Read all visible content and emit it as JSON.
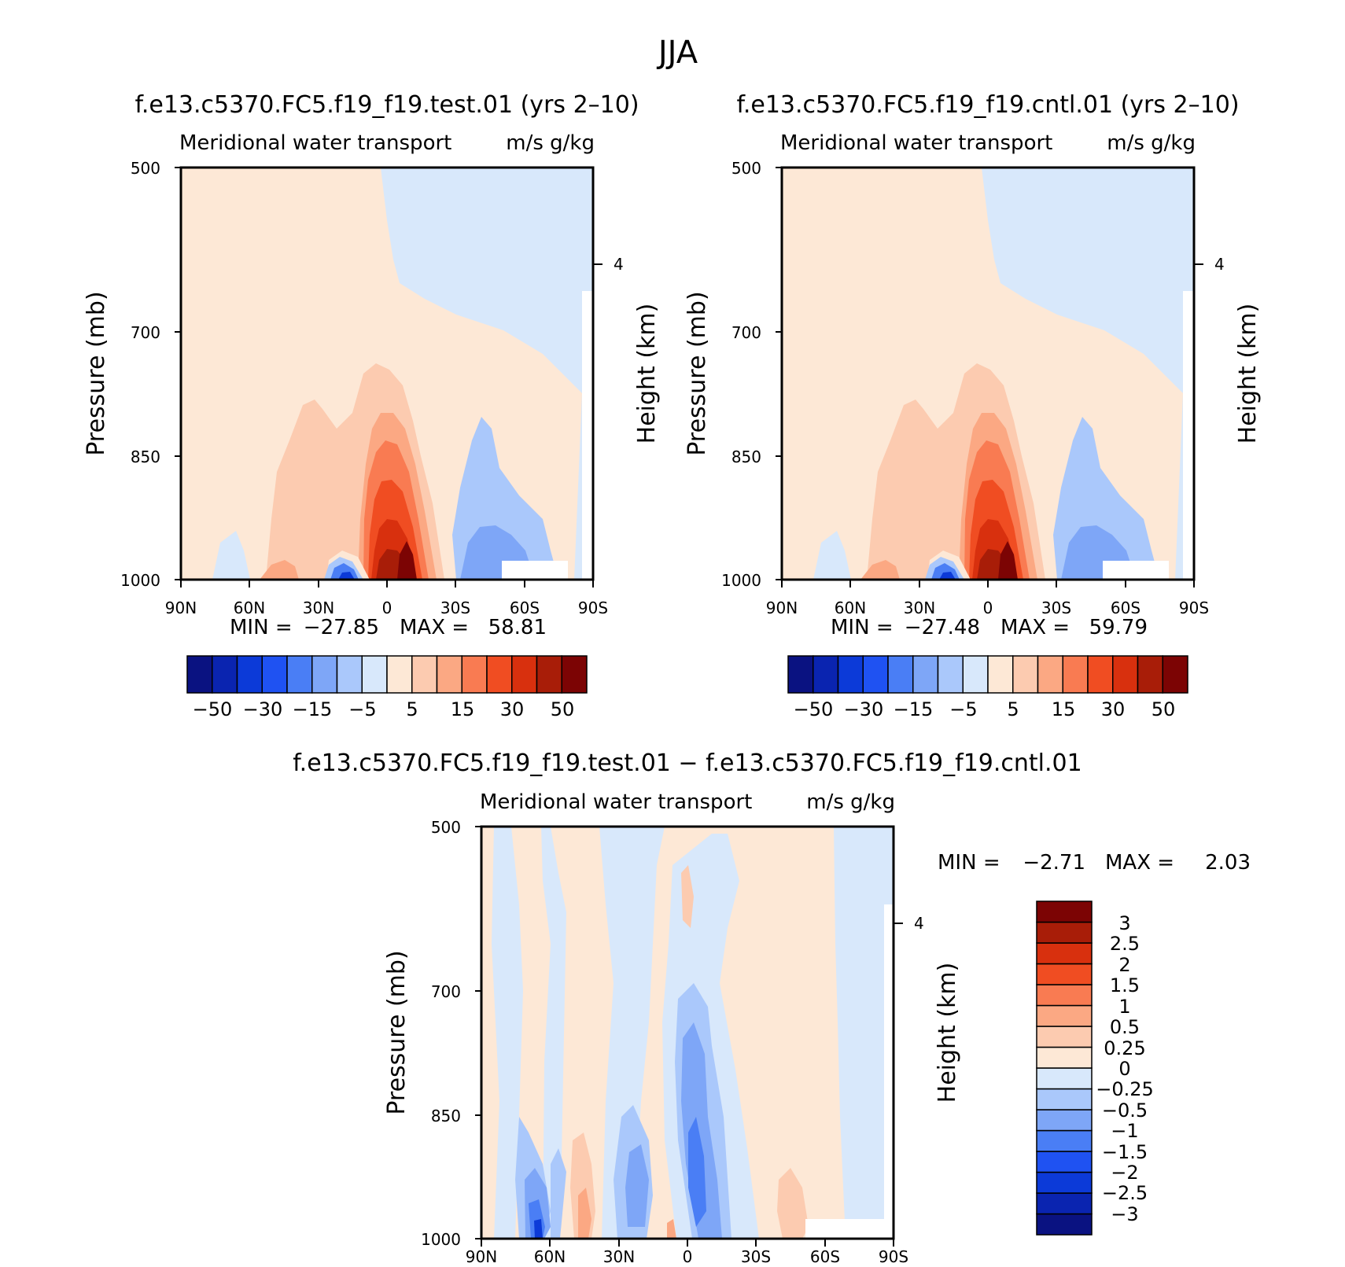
{
  "figure": {
    "title": "JJA"
  },
  "chart_data": [
    {
      "type": "heatmap",
      "title": "f.e13.c5370.FC5.f19_f19.test.01 (yrs 2–10)",
      "subtitle_left": "Meridional water transport",
      "subtitle_right": "m/s g/kg",
      "ylabel": "Pressure (mb)",
      "ylabel_right": "Height (km)",
      "x_ticks": [
        "90N",
        "60N",
        "30N",
        "0",
        "30S",
        "60S",
        "90S"
      ],
      "y_ticks": [
        "500",
        "700",
        "850",
        "1000"
      ],
      "y_ticks_right": [
        "4"
      ],
      "xlim": [
        90,
        -90
      ],
      "ylim": [
        1000,
        500
      ],
      "min_label": "MIN =",
      "min_value": "−27.85",
      "max_label": "MAX =",
      "max_value": "58.81",
      "colorbar": {
        "orientation": "horizontal",
        "colors": [
          "#0a1281",
          "#0a24b0",
          "#0c3ad8",
          "#1f52f2",
          "#4a7ef5",
          "#7ea6f7",
          "#aac8fb",
          "#d8e8fb",
          "#fde8d6",
          "#fccbb0",
          "#fba883",
          "#f97b52",
          "#f04d22",
          "#d8300e",
          "#a81d08",
          "#7c0404"
        ],
        "labels": [
          "−50",
          "−30",
          "−15",
          "−5",
          "5",
          "15",
          "30",
          "50"
        ]
      }
    },
    {
      "type": "heatmap",
      "title": "f.e13.c5370.FC5.f19_f19.cntl.01 (yrs 2–10)",
      "subtitle_left": "Meridional water transport",
      "subtitle_right": "m/s g/kg",
      "ylabel": "Pressure (mb)",
      "ylabel_right": "Height (km)",
      "x_ticks": [
        "90N",
        "60N",
        "30N",
        "0",
        "30S",
        "60S",
        "90S"
      ],
      "y_ticks": [
        "500",
        "700",
        "850",
        "1000"
      ],
      "y_ticks_right": [
        "4"
      ],
      "xlim": [
        90,
        -90
      ],
      "ylim": [
        1000,
        500
      ],
      "min_label": "MIN =",
      "min_value": "−27.48",
      "max_label": "MAX =",
      "max_value": "59.79",
      "colorbar": {
        "orientation": "horizontal",
        "colors": [
          "#0a1281",
          "#0a24b0",
          "#0c3ad8",
          "#1f52f2",
          "#4a7ef5",
          "#7ea6f7",
          "#aac8fb",
          "#d8e8fb",
          "#fde8d6",
          "#fccbb0",
          "#fba883",
          "#f97b52",
          "#f04d22",
          "#d8300e",
          "#a81d08",
          "#7c0404"
        ],
        "labels": [
          "−50",
          "−30",
          "−15",
          "−5",
          "5",
          "15",
          "30",
          "50"
        ]
      }
    },
    {
      "type": "heatmap",
      "title": "f.e13.c5370.FC5.f19_f19.test.01 − f.e13.c5370.FC5.f19_f19.cntl.01",
      "subtitle_left": "Meridional water transport",
      "subtitle_right": "m/s g/kg",
      "ylabel": "Pressure (mb)",
      "ylabel_right": "Height (km)",
      "x_ticks": [
        "90N",
        "60N",
        "30N",
        "0",
        "30S",
        "60S",
        "90S"
      ],
      "y_ticks": [
        "500",
        "700",
        "850",
        "1000"
      ],
      "y_ticks_right": [
        "4"
      ],
      "xlim": [
        90,
        -90
      ],
      "ylim": [
        1000,
        500
      ],
      "min_label": "MIN =",
      "min_value": "−2.71",
      "max_label": "MAX =",
      "max_value": "2.03",
      "colorbar": {
        "orientation": "vertical",
        "colors": [
          "#0a1281",
          "#0a24b0",
          "#0c3ad8",
          "#1f52f2",
          "#4a7ef5",
          "#7ea6f7",
          "#aac8fb",
          "#d8e8fb",
          "#fde8d6",
          "#fccbb0",
          "#fba883",
          "#f97b52",
          "#f04d22",
          "#d8300e",
          "#a81d08",
          "#7c0404"
        ],
        "labels": [
          "−3",
          "−2.5",
          "−2",
          "−1.5",
          "−1",
          "−0.5",
          "−0.25",
          "0",
          "0.25",
          "0.5",
          "1",
          "1.5",
          "2",
          "2.5",
          "3"
        ]
      }
    }
  ]
}
